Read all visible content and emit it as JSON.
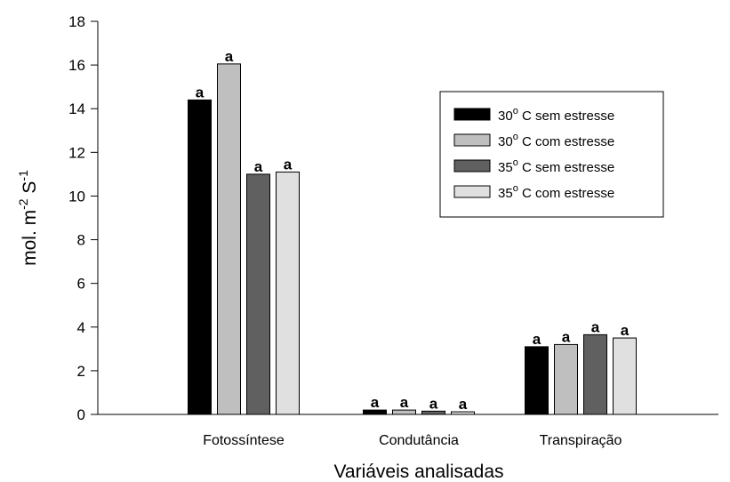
{
  "chart_data": {
    "type": "bar",
    "categories": [
      "Fotossíntese",
      "Condutância",
      "Transpiração"
    ],
    "series": [
      {
        "name": "30º C sem estresse",
        "color": "#000000",
        "values": [
          14.4,
          0.2,
          3.1
        ],
        "labels": [
          "a",
          "a",
          "a"
        ]
      },
      {
        "name": "30º C com estresse",
        "color": "#bfbfbf",
        "values": [
          16.05,
          0.2,
          3.2
        ],
        "labels": [
          "a",
          "a",
          "a"
        ]
      },
      {
        "name": "35º C sem estresse",
        "color": "#606060",
        "values": [
          11.0,
          0.15,
          3.65
        ],
        "labels": [
          "a",
          "a",
          "a"
        ]
      },
      {
        "name": "35º C com estresse",
        "color": "#e0e0e0",
        "values": [
          11.1,
          0.12,
          3.5
        ],
        "labels": [
          "a",
          "a",
          "a"
        ]
      }
    ],
    "legend_series": [
      {
        "temp": "30",
        "unit": "o",
        "rest": " C sem estresse"
      },
      {
        "temp": "30",
        "unit": "o",
        "rest": " C com estresse"
      },
      {
        "temp": "35",
        "unit": "o",
        "rest": " C sem estresse"
      },
      {
        "temp": "35",
        "unit": "o",
        "rest": " C com estresse"
      }
    ],
    "ylim": [
      0,
      18
    ],
    "yticks": [
      0,
      2,
      4,
      6,
      8,
      10,
      12,
      14,
      16,
      18
    ],
    "xlabel": "Variáveis analisadas",
    "ylabel": {
      "base": "mol. m",
      "sup1": "-2",
      "mid": " S",
      "sup2": "-1"
    },
    "legend_position": "top-right",
    "grid": false
  }
}
